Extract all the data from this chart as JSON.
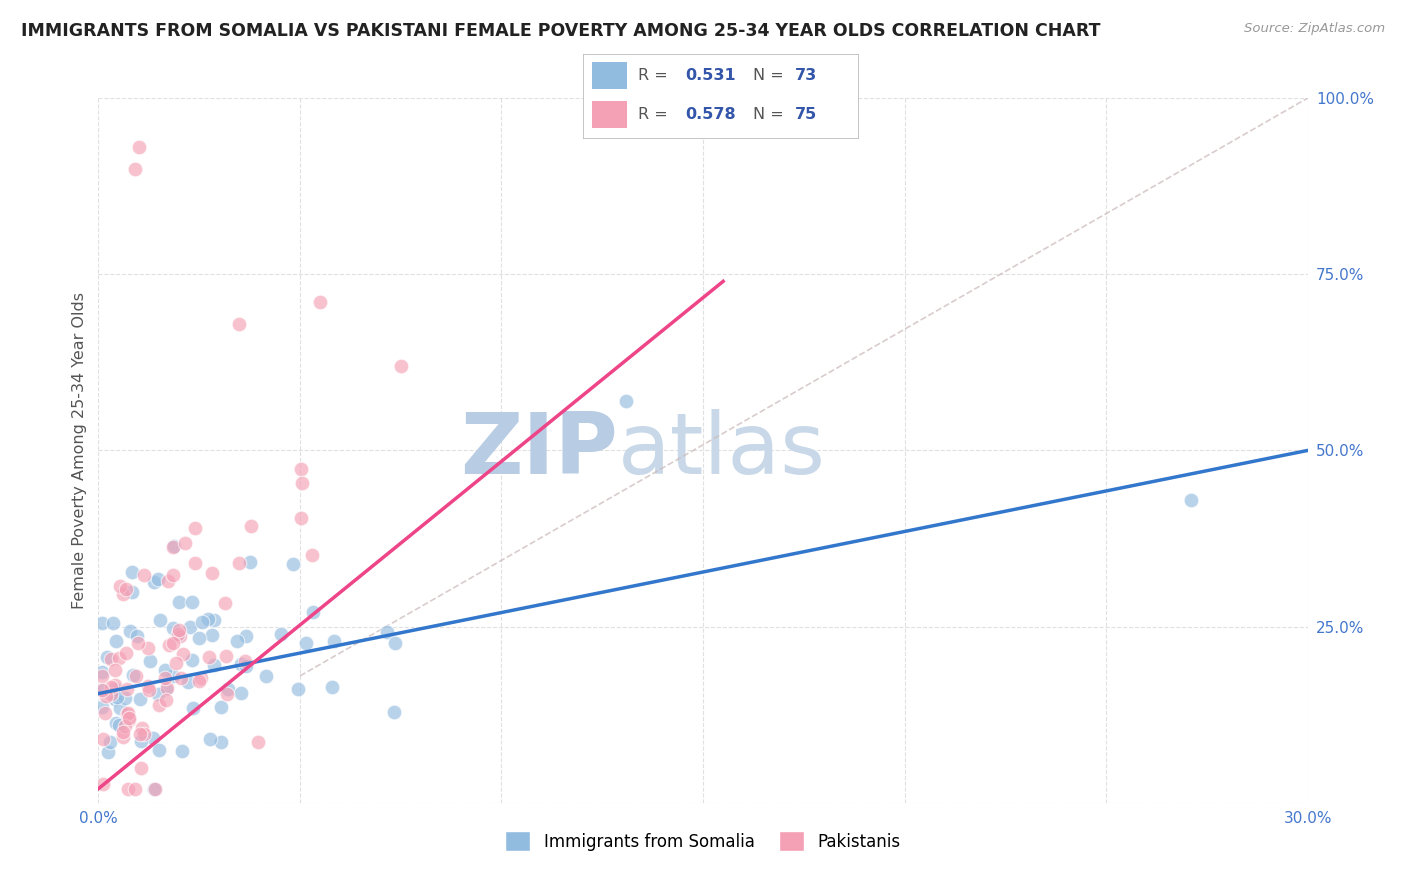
{
  "title": "IMMIGRANTS FROM SOMALIA VS PAKISTANI FEMALE POVERTY AMONG 25-34 YEAR OLDS CORRELATION CHART",
  "source": "Source: ZipAtlas.com",
  "ylabel": "Female Poverty Among 25-34 Year Olds",
  "xlim": [
    0.0,
    0.3
  ],
  "ylim": [
    0.0,
    1.0
  ],
  "somalia_color": "#92BBE0",
  "pakistan_color": "#F4A0B5",
  "somalia_R": 0.531,
  "somalia_N": 73,
  "pakistan_R": 0.578,
  "pakistan_N": 75,
  "watermark_zip": "ZIP",
  "watermark_atlas": "atlas",
  "watermark_color": "#C8D8EC",
  "regression_line_somalia_color": "#3377CC",
  "regression_line_pakistan_color": "#EE4488",
  "diagonal_color": "#CCBBBB",
  "background_color": "#FFFFFF",
  "grid_color": "#DDDDDD",
  "title_color": "#222222",
  "source_color": "#999999",
  "legend_R_color": "#3355AA",
  "tick_color": "#4477CC",
  "ylabel_color": "#555555"
}
